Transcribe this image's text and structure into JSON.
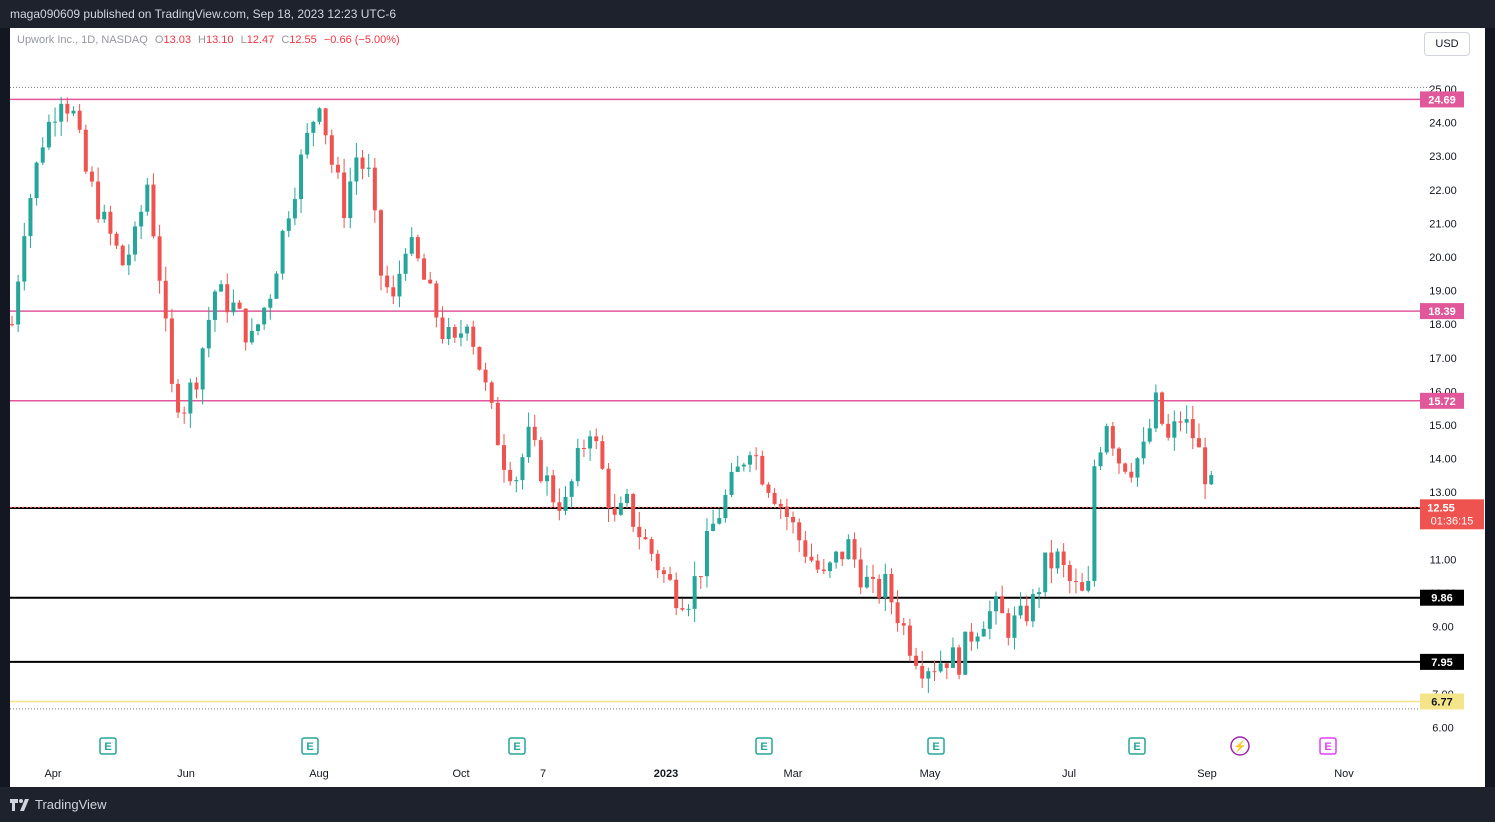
{
  "publish_line": "maga090609 published on TradingView.com, Sep 18, 2023 12:23 UTC-6",
  "legend": {
    "symbol": "Upwork Inc., 1D, NASDAQ",
    "o_label": "O",
    "o": "13.03",
    "h_label": "H",
    "h": "13.10",
    "l_label": "L",
    "l": "12.47",
    "c_label": "C",
    "c": "12.55",
    "change": "−0.66 (−5.00%)"
  },
  "currency_button": "USD",
  "brand": "TradingView",
  "colors": {
    "up": "#26a69a",
    "down": "#ef5350",
    "resistance": "#e1589a",
    "support": "#000000",
    "low": "#f5e58a"
  },
  "chart_data": {
    "type": "candlestick",
    "price_axis": {
      "min": 6.0,
      "max": 25.0,
      "ticks": [
        "6.00",
        "7.00",
        "9.00",
        "10.00",
        "11.00",
        "13.00",
        "14.00",
        "15.00",
        "16.00",
        "17.00",
        "18.00",
        "19.00",
        "20.00",
        "21.00",
        "22.00",
        "23.00",
        "24.00",
        "25.00"
      ]
    },
    "time_axis": [
      "Apr",
      "Jun",
      "Aug",
      "Oct",
      "7",
      "2023",
      "Mar",
      "May",
      "Jul",
      "Sep",
      "Nov"
    ],
    "horizontal_lines": [
      {
        "label": "24.69",
        "price": 24.69,
        "style": "resistance"
      },
      {
        "label": "18.39",
        "price": 18.39,
        "style": "resistance"
      },
      {
        "label": "15.72",
        "price": 15.72,
        "style": "resistance"
      },
      {
        "label": "12.53",
        "price": 12.53,
        "style": "support"
      },
      {
        "label": "9.86",
        "price": 9.86,
        "style": "support"
      },
      {
        "label": "7.95",
        "price": 7.95,
        "style": "support"
      },
      {
        "label": "6.77",
        "price": 6.77,
        "style": "low"
      }
    ],
    "last_price": {
      "label": "12.55",
      "price": 12.55,
      "countdown": "01:36:15"
    },
    "range_top": 25.05,
    "range_bottom": 6.55,
    "earnings_markers": [
      "E",
      "E",
      "E",
      "E",
      "E",
      "E",
      "E"
    ],
    "dividend_marker": "⚡",
    "future_earnings_marker": "E",
    "price_path": [
      [
        0,
        18.0
      ],
      [
        2,
        21.0
      ],
      [
        5,
        23.5
      ],
      [
        8,
        24.9
      ],
      [
        10,
        24.2
      ],
      [
        12,
        22.5
      ],
      [
        15,
        21.0
      ],
      [
        18,
        19.8
      ],
      [
        20,
        20.5
      ],
      [
        22,
        22.2
      ],
      [
        24,
        19.5
      ],
      [
        26,
        16.0
      ],
      [
        28,
        15.6
      ],
      [
        30,
        16.5
      ],
      [
        33,
        19.0
      ],
      [
        36,
        18.5
      ],
      [
        39,
        17.5
      ],
      [
        42,
        19.0
      ],
      [
        45,
        21.5
      ],
      [
        48,
        23.5
      ],
      [
        50,
        24.8
      ],
      [
        52,
        22.8
      ],
      [
        54,
        21.5
      ],
      [
        56,
        23.0
      ],
      [
        58,
        22.4
      ],
      [
        60,
        19.5
      ],
      [
        62,
        18.6
      ],
      [
        64,
        20.5
      ],
      [
        66,
        19.8
      ],
      [
        68,
        18.8
      ],
      [
        70,
        17.8
      ],
      [
        72,
        17.3
      ],
      [
        74,
        18.3
      ],
      [
        76,
        16.8
      ],
      [
        78,
        15.3
      ],
      [
        80,
        14.0
      ],
      [
        82,
        13.5
      ],
      [
        84,
        14.6
      ],
      [
        86,
        13.7
      ],
      [
        88,
        12.9
      ],
      [
        90,
        12.6
      ],
      [
        92,
        13.9
      ],
      [
        94,
        15.0
      ],
      [
        96,
        13.6
      ],
      [
        98,
        12.1
      ],
      [
        100,
        12.6
      ],
      [
        102,
        11.8
      ],
      [
        104,
        11.2
      ],
      [
        106,
        10.5
      ],
      [
        108,
        10.0
      ],
      [
        110,
        9.9
      ],
      [
        112,
        10.8
      ],
      [
        114,
        12.0
      ],
      [
        116,
        12.8
      ],
      [
        118,
        13.6
      ],
      [
        120,
        14.5
      ],
      [
        122,
        13.6
      ],
      [
        124,
        13.0
      ],
      [
        126,
        12.3
      ],
      [
        128,
        11.6
      ],
      [
        130,
        11.0
      ],
      [
        132,
        10.4
      ],
      [
        134,
        11.0
      ],
      [
        136,
        11.4
      ],
      [
        138,
        10.6
      ],
      [
        140,
        10.0
      ],
      [
        142,
        10.2
      ],
      [
        144,
        9.4
      ],
      [
        146,
        8.5
      ],
      [
        148,
        7.9
      ],
      [
        150,
        7.9
      ],
      [
        152,
        8.1
      ],
      [
        154,
        8.0
      ],
      [
        156,
        8.8
      ],
      [
        158,
        9.3
      ],
      [
        160,
        9.5
      ],
      [
        162,
        9.0
      ],
      [
        164,
        9.2
      ],
      [
        166,
        9.7
      ],
      [
        168,
        10.8
      ],
      [
        170,
        11.0
      ],
      [
        172,
        10.3
      ],
      [
        174,
        9.9
      ],
      [
        175,
        10.1
      ],
      [
        176,
        13.8
      ],
      [
        178,
        15.2
      ],
      [
        180,
        14.0
      ],
      [
        182,
        13.8
      ],
      [
        184,
        14.2
      ],
      [
        186,
        15.6
      ],
      [
        188,
        14.5
      ],
      [
        190,
        15.2
      ],
      [
        192,
        14.7
      ],
      [
        194,
        13.6
      ],
      [
        196,
        12.55
      ]
    ]
  }
}
